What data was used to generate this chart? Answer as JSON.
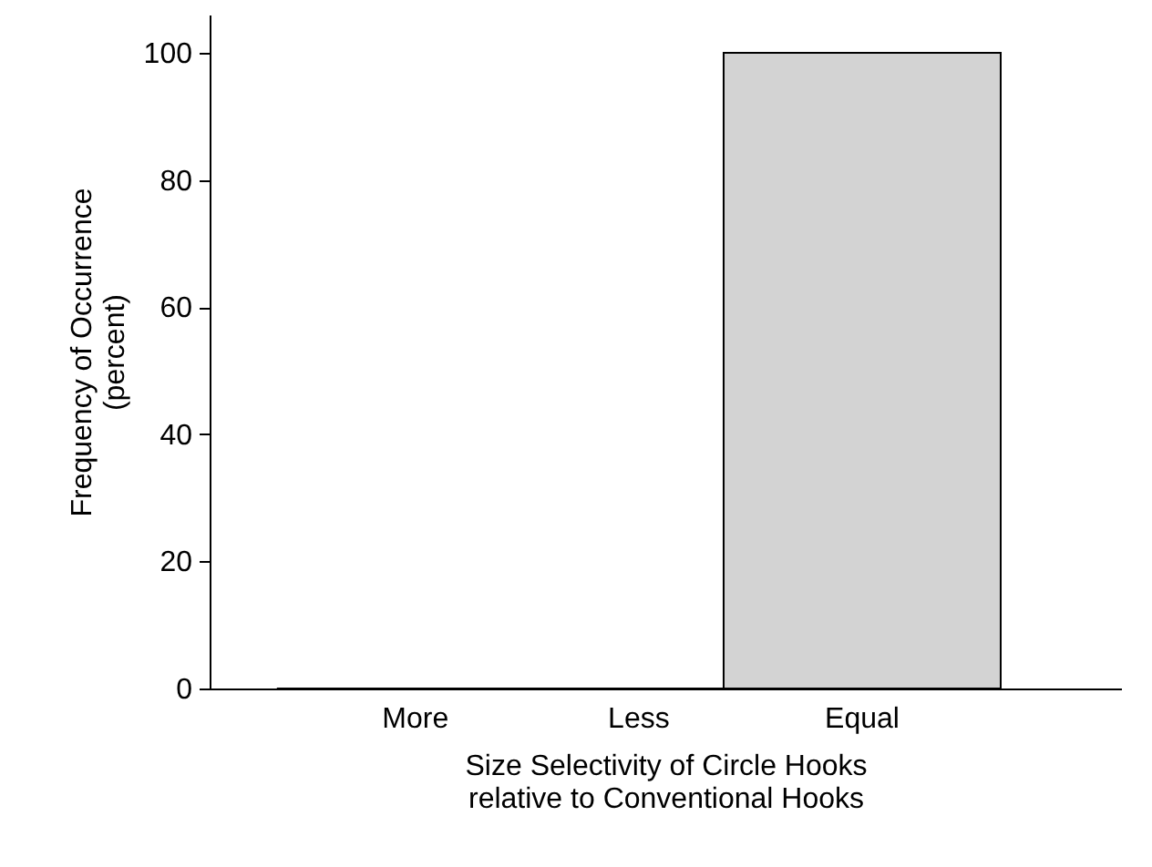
{
  "chart_data": {
    "type": "bar",
    "xlabel": "Size Selectivity of Circle Hooks\nrelative to Conventional Hooks",
    "ylabel": "Frequency of Occurrence\n(percent)",
    "categories": [
      "More",
      "Less",
      "Equal"
    ],
    "values": [
      0,
      0,
      100
    ],
    "color": "#d3d3d3",
    "ylim": [
      0,
      106
    ],
    "yticks": [
      0,
      20,
      40,
      60,
      80,
      100
    ],
    "grid": false
  }
}
